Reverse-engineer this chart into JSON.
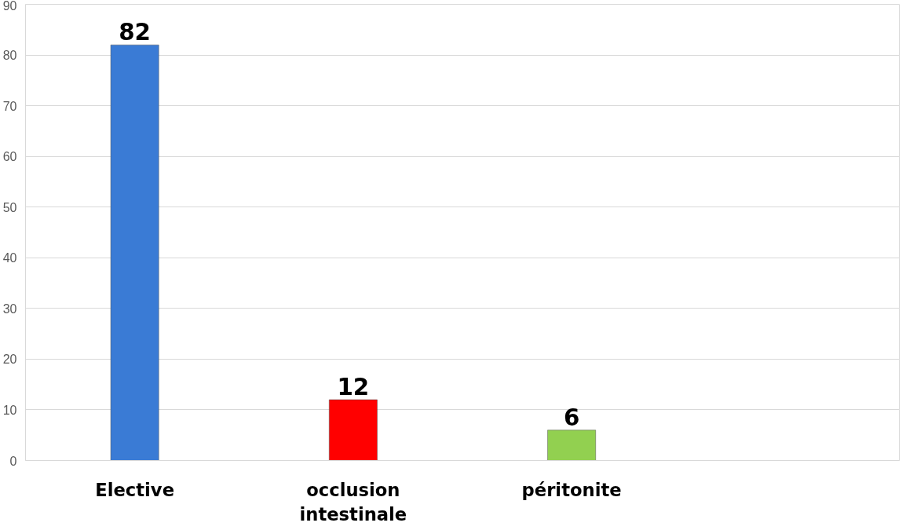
{
  "chart_data": {
    "type": "bar",
    "categories": [
      "Elective",
      "occlusion intestinale",
      "péritonite",
      null
    ],
    "values": [
      82,
      12,
      6,
      null
    ],
    "colors": [
      "#3a7bd5",
      "#ff0000",
      "#92d050",
      "#92d050"
    ],
    "ylim": [
      0,
      90
    ],
    "yticks": [
      0,
      10,
      20,
      30,
      40,
      50,
      60,
      70,
      80,
      90
    ],
    "grid": "y",
    "data_labels": true
  }
}
